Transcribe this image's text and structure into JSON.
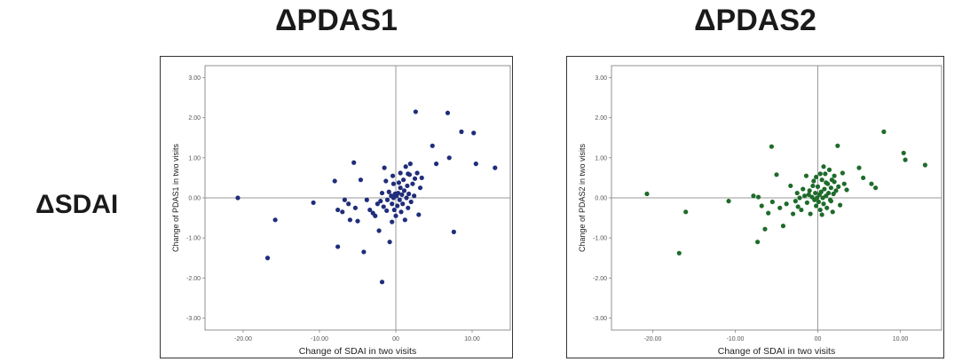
{
  "titles": [
    "ΔPDAS1",
    "ΔPDAS2"
  ],
  "row_label": "ΔSDAI",
  "chart_data": [
    {
      "type": "scatter",
      "title": "ΔPDAS1",
      "xlabel": "Change of SDAI in two visits",
      "ylabel": "Change of PDAS1 in two visits",
      "xlim": [
        -25,
        15
      ],
      "ylim": [
        -3.3,
        3.3
      ],
      "xticks": [
        -20,
        -10,
        0,
        10
      ],
      "xtick_labels": [
        "-20.00",
        "-10.00",
        "00",
        "10.00"
      ],
      "yticks": [
        3,
        2,
        1,
        0,
        -1,
        -2,
        -3
      ],
      "ytick_labels": [
        "3.00",
        "2.00",
        "1.00",
        "0.00",
        "-1.00",
        "-2.00",
        "-3.00"
      ],
      "reference_lines": {
        "x": 0,
        "y": 0
      },
      "grid": false,
      "color": "#1f2d7a",
      "points": [
        [
          -20.7,
          0.0
        ],
        [
          -15.8,
          -0.55
        ],
        [
          -16.8,
          -1.5
        ],
        [
          -10.8,
          -0.12
        ],
        [
          -8.0,
          0.42
        ],
        [
          -7.6,
          -0.3
        ],
        [
          -7.6,
          -1.22
        ],
        [
          -7.0,
          -0.35
        ],
        [
          -6.7,
          -0.05
        ],
        [
          -6.2,
          -0.15
        ],
        [
          -6.0,
          -0.55
        ],
        [
          -5.5,
          0.88
        ],
        [
          -5.3,
          -0.25
        ],
        [
          -5.0,
          -0.58
        ],
        [
          -4.6,
          0.45
        ],
        [
          -4.2,
          -1.35
        ],
        [
          -3.8,
          -0.05
        ],
        [
          -3.4,
          -0.3
        ],
        [
          -3.0,
          -0.38
        ],
        [
          -2.7,
          -0.45
        ],
        [
          -2.4,
          -0.15
        ],
        [
          -2.2,
          -0.82
        ],
        [
          -2.0,
          -0.08
        ],
        [
          -1.8,
          0.12
        ],
        [
          -1.6,
          -0.22
        ],
        [
          -1.5,
          0.75
        ],
        [
          -1.3,
          0.42
        ],
        [
          -1.2,
          -0.32
        ],
        [
          -1.1,
          -0.05
        ],
        [
          -0.9,
          0.15
        ],
        [
          -0.8,
          -1.1
        ],
        [
          -0.6,
          0.05
        ],
        [
          -0.5,
          -0.15
        ],
        [
          -0.4,
          0.55
        ],
        [
          -0.3,
          0.0
        ],
        [
          -0.2,
          -0.3
        ],
        [
          -0.1,
          0.1
        ],
        [
          0.0,
          -0.45
        ],
        [
          0.1,
          0.05
        ],
        [
          0.2,
          -0.2
        ],
        [
          0.3,
          0.12
        ],
        [
          0.4,
          0.38
        ],
        [
          0.5,
          -0.05
        ],
        [
          0.6,
          0.25
        ],
        [
          0.7,
          -0.35
        ],
        [
          0.8,
          0.08
        ],
        [
          0.9,
          -0.15
        ],
        [
          1.0,
          0.45
        ],
        [
          1.1,
          0.18
        ],
        [
          1.2,
          -0.55
        ],
        [
          1.3,
          0.78
        ],
        [
          1.4,
          0.0
        ],
        [
          1.5,
          0.3
        ],
        [
          1.6,
          -0.25
        ],
        [
          1.7,
          0.1
        ],
        [
          1.8,
          0.58
        ],
        [
          1.9,
          0.85
        ],
        [
          2.0,
          -0.1
        ],
        [
          2.2,
          0.35
        ],
        [
          2.4,
          0.05
        ],
        [
          2.5,
          0.48
        ],
        [
          2.6,
          2.15
        ],
        [
          2.8,
          0.62
        ],
        [
          3.0,
          -0.42
        ],
        [
          3.2,
          0.25
        ],
        [
          3.4,
          0.5
        ],
        [
          4.8,
          1.3
        ],
        [
          5.3,
          0.85
        ],
        [
          6.8,
          2.12
        ],
        [
          7.0,
          1.0
        ],
        [
          7.6,
          -0.85
        ],
        [
          8.6,
          1.65
        ],
        [
          10.2,
          1.62
        ],
        [
          10.5,
          0.85
        ],
        [
          13.0,
          0.75
        ],
        [
          -1.8,
          -2.1
        ],
        [
          -0.5,
          -0.6
        ],
        [
          0.6,
          0.62
        ],
        [
          -0.3,
          0.35
        ],
        [
          1.6,
          0.6
        ]
      ]
    },
    {
      "type": "scatter",
      "title": "ΔPDAS2",
      "xlabel": "Change of SDAI in two visits",
      "ylabel": "Change of PDAS2 in two visits",
      "xlim": [
        -25,
        15
      ],
      "ylim": [
        -3.3,
        3.3
      ],
      "xticks": [
        -20,
        -10,
        0,
        10
      ],
      "xtick_labels": [
        "-20.00",
        "-10.00",
        "00",
        "10.00"
      ],
      "yticks": [
        3,
        2,
        1,
        0,
        -1,
        -2,
        -3
      ],
      "ytick_labels": [
        "3.00",
        "2.00",
        "1.00",
        "0.00",
        "-1.00",
        "-2.00",
        "-3.00"
      ],
      "reference_lines": {
        "x": 0,
        "y": 0
      },
      "grid": false,
      "color": "#1e6b2a",
      "points": [
        [
          -20.7,
          0.1
        ],
        [
          -16.8,
          -1.38
        ],
        [
          -16.0,
          -0.35
        ],
        [
          -10.8,
          -0.08
        ],
        [
          -7.8,
          0.05
        ],
        [
          -7.3,
          -1.1
        ],
        [
          -7.2,
          0.02
        ],
        [
          -6.8,
          -0.2
        ],
        [
          -6.4,
          -0.78
        ],
        [
          -6.0,
          -0.38
        ],
        [
          -5.6,
          1.28
        ],
        [
          -5.5,
          -0.1
        ],
        [
          -5.0,
          0.58
        ],
        [
          -4.6,
          -0.25
        ],
        [
          -4.2,
          -0.7
        ],
        [
          -3.8,
          -0.15
        ],
        [
          -3.3,
          0.3
        ],
        [
          -3.0,
          -0.4
        ],
        [
          -2.7,
          -0.08
        ],
        [
          -2.4,
          -0.22
        ],
        [
          -2.2,
          0.0
        ],
        [
          -2.0,
          -0.3
        ],
        [
          -1.8,
          0.22
        ],
        [
          -1.6,
          0.05
        ],
        [
          -1.4,
          0.55
        ],
        [
          -1.3,
          -0.12
        ],
        [
          -1.1,
          0.08
        ],
        [
          -0.9,
          -0.4
        ],
        [
          -0.7,
          0.02
        ],
        [
          -0.6,
          0.3
        ],
        [
          -0.4,
          -0.05
        ],
        [
          -0.3,
          0.12
        ],
        [
          -0.2,
          -0.2
        ],
        [
          -0.1,
          0.0
        ],
        [
          0.0,
          0.28
        ],
        [
          0.1,
          -0.1
        ],
        [
          0.2,
          0.08
        ],
        [
          0.3,
          -0.3
        ],
        [
          0.4,
          0.15
        ],
        [
          0.5,
          0.45
        ],
        [
          0.6,
          0.0
        ],
        [
          0.7,
          -0.15
        ],
        [
          0.8,
          0.22
        ],
        [
          0.9,
          0.6
        ],
        [
          1.0,
          0.05
        ],
        [
          1.1,
          -0.25
        ],
        [
          1.2,
          0.35
        ],
        [
          1.3,
          0.12
        ],
        [
          1.4,
          0.7
        ],
        [
          1.5,
          -0.05
        ],
        [
          1.6,
          0.25
        ],
        [
          1.7,
          0.45
        ],
        [
          1.8,
          -0.35
        ],
        [
          1.9,
          0.1
        ],
        [
          2.0,
          0.55
        ],
        [
          2.2,
          0.18
        ],
        [
          2.4,
          1.3
        ],
        [
          2.5,
          0.28
        ],
        [
          2.7,
          -0.18
        ],
        [
          3.0,
          0.62
        ],
        [
          3.2,
          0.35
        ],
        [
          3.5,
          0.2
        ],
        [
          5.0,
          0.75
        ],
        [
          5.5,
          0.5
        ],
        [
          6.5,
          0.35
        ],
        [
          7.0,
          0.25
        ],
        [
          8.0,
          1.65
        ],
        [
          10.4,
          1.12
        ],
        [
          10.6,
          0.95
        ],
        [
          13.0,
          0.82
        ],
        [
          -0.5,
          0.42
        ],
        [
          0.3,
          0.6
        ],
        [
          1.0,
          0.38
        ],
        [
          -1.0,
          0.18
        ],
        [
          0.7,
          0.78
        ],
        [
          2.0,
          0.4
        ],
        [
          -2.5,
          0.12
        ],
        [
          1.6,
          -0.08
        ],
        [
          -0.2,
          0.52
        ],
        [
          0.5,
          -0.42
        ]
      ]
    }
  ]
}
